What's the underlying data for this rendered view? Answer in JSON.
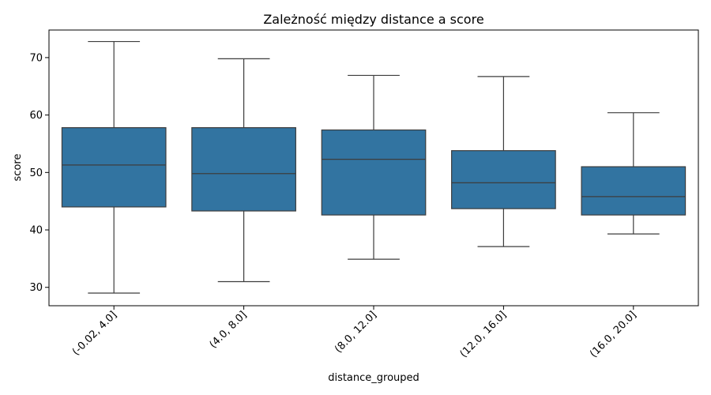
{
  "chart_data": {
    "type": "boxplot",
    "title": "Zależność między distance a score",
    "xlabel": "distance_grouped",
    "ylabel": "score",
    "ylim": [
      26.8,
      74.8
    ],
    "yticks": [
      30,
      40,
      50,
      60,
      70
    ],
    "grid": false,
    "categories": [
      "(-0.02, 4.0]",
      "(4.0, 8.0]",
      "(8.0, 12.0]",
      "(12.0, 16.0]",
      "(16.0, 20.0]"
    ],
    "boxes": [
      {
        "whisker_low": 29.0,
        "q1": 44.0,
        "median": 51.3,
        "q3": 57.8,
        "whisker_high": 72.8
      },
      {
        "whisker_low": 31.0,
        "q1": 43.3,
        "median": 49.8,
        "q3": 57.8,
        "whisker_high": 69.8
      },
      {
        "whisker_low": 34.9,
        "q1": 42.6,
        "median": 52.3,
        "q3": 57.4,
        "whisker_high": 66.9
      },
      {
        "whisker_low": 37.1,
        "q1": 43.7,
        "median": 48.2,
        "q3": 53.8,
        "whisker_high": 66.7
      },
      {
        "whisker_low": 39.3,
        "q1": 42.6,
        "median": 45.8,
        "q3": 51.0,
        "whisker_high": 60.4
      }
    ],
    "colors": {
      "box_fill": "#3274a1",
      "line": "#3d3d3d",
      "axis": "#000000"
    }
  }
}
